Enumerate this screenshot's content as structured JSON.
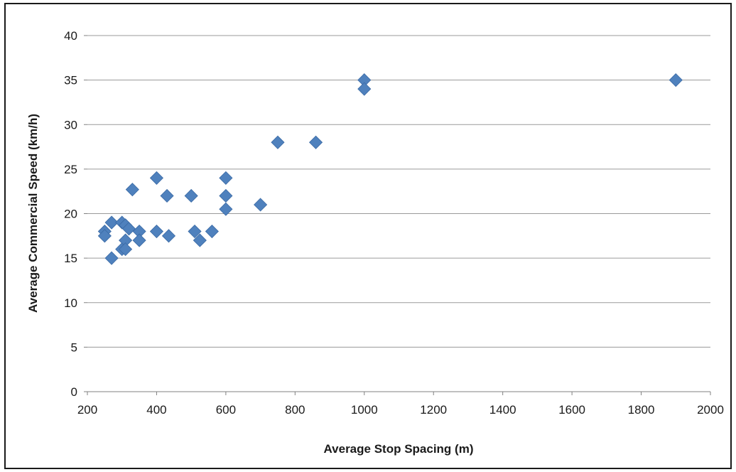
{
  "chart_data": {
    "type": "scatter",
    "xlabel": "Average Stop Spacing (m)",
    "ylabel": "Average Commercial Speed (km/h)",
    "xlim": [
      200,
      2000
    ],
    "ylim": [
      0,
      40
    ],
    "xticks": [
      200,
      400,
      600,
      800,
      1000,
      1200,
      1400,
      1600,
      1800,
      2000
    ],
    "yticks": [
      0,
      5,
      10,
      15,
      20,
      25,
      30,
      35,
      40
    ],
    "grid": "horizontal",
    "marker": "diamond",
    "marker_color": "#4f81bd",
    "series": [
      {
        "points": [
          {
            "x": 250,
            "y": 18
          },
          {
            "x": 250,
            "y": 17.5
          },
          {
            "x": 270,
            "y": 19
          },
          {
            "x": 270,
            "y": 15
          },
          {
            "x": 300,
            "y": 19
          },
          {
            "x": 300,
            "y": 16
          },
          {
            "x": 310,
            "y": 18.7
          },
          {
            "x": 310,
            "y": 17
          },
          {
            "x": 310,
            "y": 16
          },
          {
            "x": 320,
            "y": 18.3
          },
          {
            "x": 330,
            "y": 22.7
          },
          {
            "x": 350,
            "y": 18
          },
          {
            "x": 350,
            "y": 17
          },
          {
            "x": 400,
            "y": 24
          },
          {
            "x": 400,
            "y": 18
          },
          {
            "x": 430,
            "y": 22
          },
          {
            "x": 435,
            "y": 17.5
          },
          {
            "x": 500,
            "y": 22
          },
          {
            "x": 510,
            "y": 18
          },
          {
            "x": 525,
            "y": 17
          },
          {
            "x": 560,
            "y": 18
          },
          {
            "x": 600,
            "y": 24
          },
          {
            "x": 600,
            "y": 22
          },
          {
            "x": 600,
            "y": 20.5
          },
          {
            "x": 700,
            "y": 21
          },
          {
            "x": 750,
            "y": 28
          },
          {
            "x": 860,
            "y": 28
          },
          {
            "x": 1000,
            "y": 35
          },
          {
            "x": 1000,
            "y": 34
          },
          {
            "x": 1900,
            "y": 35
          }
        ]
      }
    ]
  }
}
